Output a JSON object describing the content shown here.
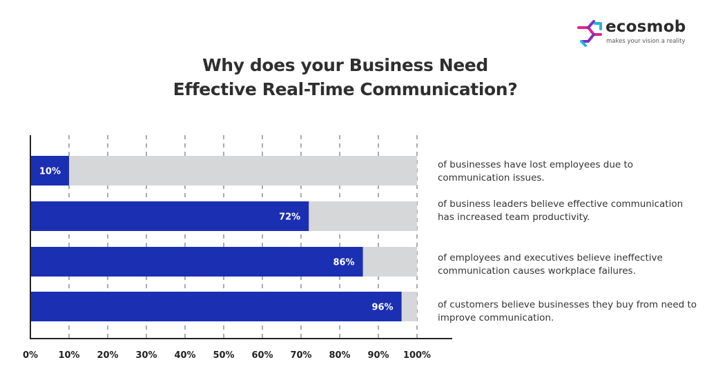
{
  "brand": {
    "name": "ecosmob",
    "tagline": "makes your vision a reality",
    "colors": {
      "magenta": "#e0218a",
      "purple": "#7b2fbf",
      "cyan": "#1fb5e6"
    }
  },
  "title_lines": [
    "Why does your Business Need",
    "Effective Real-Time Communication?"
  ],
  "descriptions": [
    "of businesses have lost employees due to communication issues.",
    "of business leaders believe effective communication has increased team productivity.",
    "of employees and executives believe ineffective communication causes workplace failures.",
    "of customers believe businesses they buy from need to improve communication."
  ],
  "chart_data": {
    "type": "bar",
    "orientation": "horizontal",
    "title": "Why does your Business Need Effective Real-Time Communication?",
    "categories": [
      "of businesses have lost employees due to communication issues.",
      "of business leaders believe effective communication has increased team productivity.",
      "of employees and executives believe ineffective communication causes workplace failures.",
      "of customers believe businesses they buy from need to improve communication."
    ],
    "values": [
      10,
      72,
      86,
      96
    ],
    "value_labels": [
      "10%",
      "72%",
      "86%",
      "96%"
    ],
    "xlim": [
      0,
      100
    ],
    "x_ticks": [
      "0%",
      "10%",
      "20%",
      "30%",
      "40%",
      "50%",
      "60%",
      "70%",
      "80%",
      "90%",
      "100%"
    ],
    "grid": "vertical dashed",
    "bar_color": "#1b2fb3",
    "track_color": "#d6d7d9",
    "label_color": "#ffffff"
  }
}
